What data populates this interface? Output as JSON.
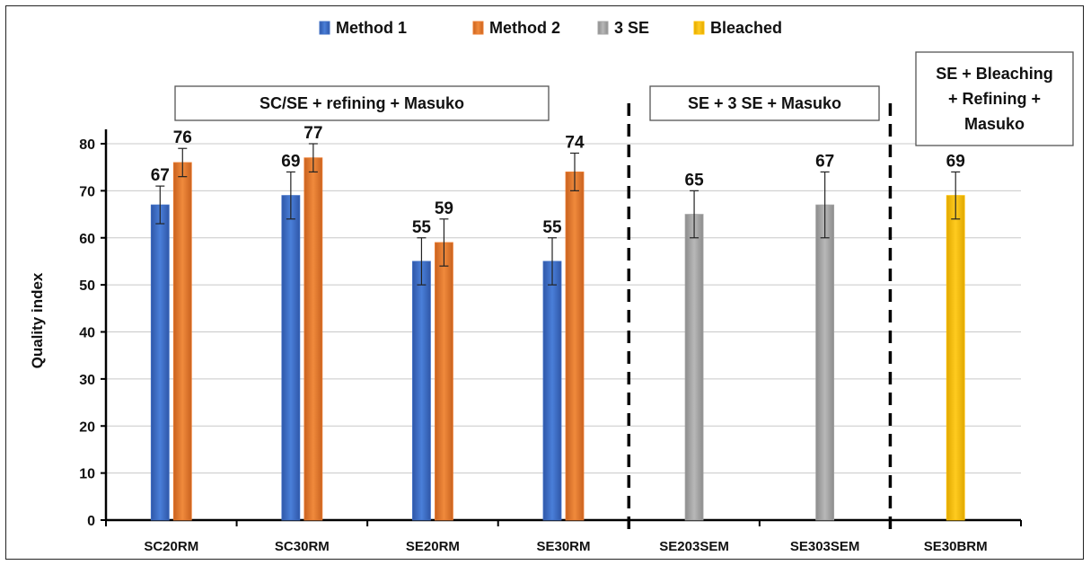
{
  "chart_data": {
    "type": "bar",
    "ylabel": "Quality index",
    "ylim": [
      0,
      80
    ],
    "yticks": [
      0,
      10,
      20,
      30,
      40,
      50,
      60,
      70,
      80
    ],
    "grid": true,
    "legend_position": "top",
    "categories": [
      "SC20RM",
      "SC30RM",
      "SE20RM",
      "SE30RM",
      "SE203SEM",
      "SE303SEM",
      "SE30BRM"
    ],
    "series": [
      {
        "name": "Method 1",
        "color": "#3f6fc6",
        "values": [
          67,
          69,
          55,
          55,
          null,
          null,
          null
        ],
        "errors": [
          4,
          5,
          5,
          5,
          null,
          null,
          null
        ]
      },
      {
        "name": "Method 2",
        "color": "#ed7d31",
        "values": [
          76,
          77,
          59,
          74,
          null,
          null,
          null
        ],
        "errors": [
          3,
          3,
          5,
          4,
          null,
          null,
          null
        ]
      },
      {
        "name": "3 SE",
        "color": "#a5a5a5",
        "values": [
          null,
          null,
          null,
          null,
          65,
          67,
          null
        ],
        "errors": [
          null,
          null,
          null,
          null,
          5,
          7,
          null
        ]
      },
      {
        "name": "Bleached",
        "color": "#ffc000",
        "values": [
          null,
          null,
          null,
          null,
          null,
          null,
          69
        ],
        "errors": [
          null,
          null,
          null,
          null,
          null,
          null,
          5
        ]
      }
    ],
    "groups": [
      {
        "label": "SC/SE + refining + Masuko",
        "lines": [
          "SC/SE + refining + Masuko"
        ]
      },
      {
        "label": "SE + 3 SE + Masuko",
        "lines": [
          "SE + 3 SE + Masuko"
        ]
      },
      {
        "label": "SE + Bleaching + Refining + Masuko",
        "lines": [
          "SE + Bleaching",
          "+ Refining +",
          "Masuko"
        ]
      }
    ]
  }
}
